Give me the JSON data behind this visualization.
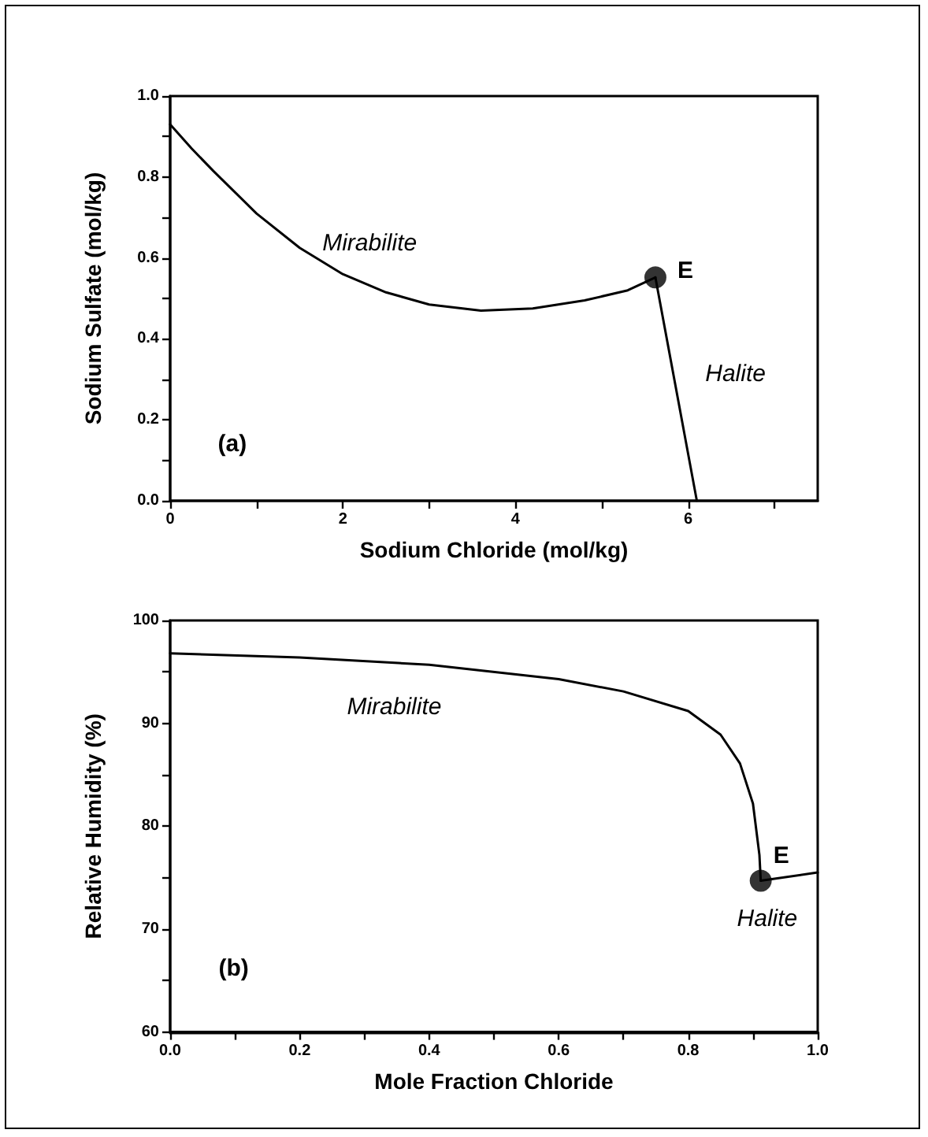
{
  "chart_data": [
    {
      "type": "line",
      "xlabel": "Sodium Chloride (mol/kg)",
      "ylabel": "Sodium Sulfate (mol/kg)",
      "xlim": [
        0,
        7.5
      ],
      "ylim": [
        0,
        1.0
      ],
      "grid": false,
      "marker": "none",
      "line_style": "solid",
      "xticks": [
        0,
        {
          "value": 1,
          "label": null
        },
        2,
        {
          "value": 3,
          "label": null
        },
        4,
        {
          "value": 5,
          "label": null
        },
        6,
        {
          "value": 7,
          "label": null
        }
      ],
      "yticks": [
        {
          "value": 0,
          "label": "0.0"
        },
        {
          "value": 0.1,
          "label": null
        },
        0.2,
        {
          "value": 0.3,
          "label": null
        },
        0.4,
        {
          "value": 0.5,
          "label": null
        },
        0.6,
        {
          "value": 0.7,
          "label": null
        },
        0.8,
        {
          "value": 0.9,
          "label": null
        },
        {
          "value": 1.0,
          "label": "1.0"
        }
      ],
      "series": [
        {
          "color": "#000000",
          "x": [
            0,
            0.25,
            0.5,
            1,
            1.5,
            2,
            2.5,
            3,
            3.6,
            4.2,
            4.8,
            5.3,
            5.62
          ],
          "values": [
            0.93,
            0.87,
            0.815,
            0.71,
            0.625,
            0.56,
            0.515,
            0.485,
            0.47,
            0.475,
            0.495,
            0.52,
            0.552
          ]
        },
        {
          "color": "#000000",
          "x": [
            5.62,
            6.1
          ],
          "values": [
            0.552,
            0
          ]
        },
        {
          "type": "scatter",
          "marker": "circle",
          "color": "#000000",
          "x": [
            5.62
          ],
          "values": [
            0.552
          ]
        }
      ],
      "annotations": [
        "Mirabilite",
        "Halite",
        {
          "text": "E",
          "x": 5.62,
          "y": 0.552
        },
        "(a)"
      ]
    },
    {
      "type": "line",
      "xlabel": "Mole Fraction Chloride",
      "ylabel": "Relative Humidity (%)",
      "xlim": [
        0,
        1.0
      ],
      "ylim": [
        60,
        100
      ],
      "grid": false,
      "marker": "none",
      "line_style": "solid",
      "xticks": [
        {
          "value": 0,
          "label": "0.0"
        },
        {
          "value": 0.1,
          "label": null
        },
        0.2,
        {
          "value": 0.3,
          "label": null
        },
        0.4,
        {
          "value": 0.5,
          "label": null
        },
        0.6,
        {
          "value": 0.7,
          "label": null
        },
        0.8,
        {
          "value": 0.9,
          "label": null
        },
        {
          "value": 1.0,
          "label": "1.0"
        }
      ],
      "yticks": [
        60,
        {
          "value": 65,
          "label": null
        },
        70,
        {
          "value": 75,
          "label": null
        },
        80,
        {
          "value": 85,
          "label": null
        },
        90,
        {
          "value": 95,
          "label": null
        },
        100
      ],
      "series": [
        {
          "color": "#000000",
          "x": [
            0,
            0.2,
            0.4,
            0.6,
            0.7,
            0.8,
            0.85,
            0.88,
            0.9,
            0.91,
            0.912
          ],
          "values": [
            96.8,
            96.4,
            95.7,
            94.3,
            93.1,
            91.2,
            88.9,
            86.1,
            82.2,
            77.2,
            74.7
          ]
        },
        {
          "color": "#000000",
          "x": [
            0.912,
            1.0
          ],
          "values": [
            74.7,
            75.5
          ]
        },
        {
          "type": "scatter",
          "marker": "circle",
          "color": "#000000",
          "x": [
            0.912
          ],
          "values": [
            74.7
          ]
        }
      ],
      "annotations": [
        "Mirabilite",
        "Halite",
        {
          "text": "E",
          "x": 0.912,
          "y": 74.7
        },
        "(b)"
      ]
    }
  ]
}
